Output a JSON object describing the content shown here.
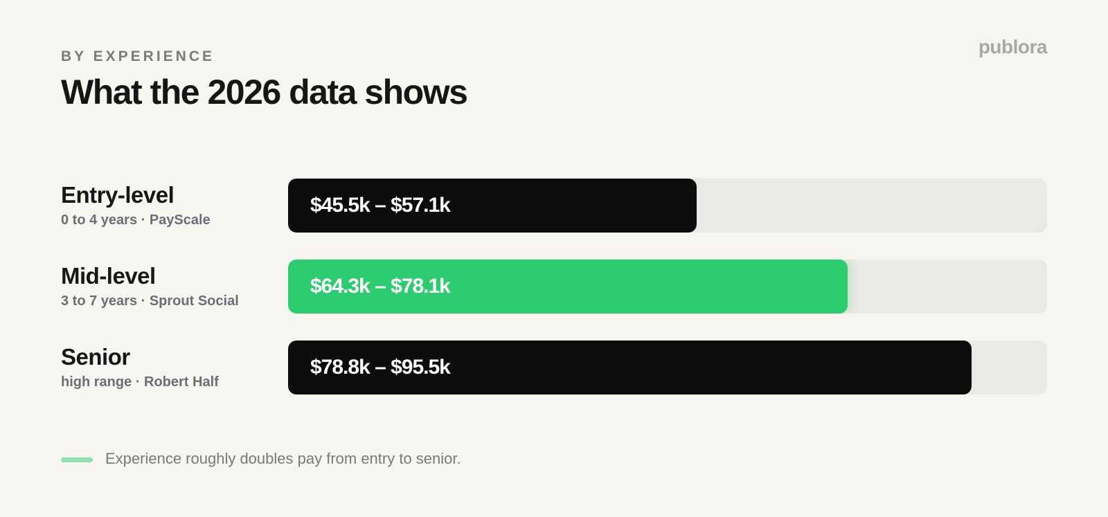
{
  "header": {
    "eyebrow": "BY EXPERIENCE",
    "title": "What the 2026 data shows",
    "brand": "publora"
  },
  "chart_data": {
    "type": "bar",
    "orientation": "horizontal",
    "title": "What the 2026 data shows",
    "categories": [
      "Entry-level",
      "Mid-level",
      "Senior"
    ],
    "subtitles": [
      "0 to 4 years · PayScale",
      "3 to 7 years · Sprout Social",
      "high range · Robert Half"
    ],
    "range_labels": [
      "$45.5k – $57.1k",
      "$64.3k – $78.1k",
      "$78.8k – $95.5k"
    ],
    "ranges_k": [
      [
        45.5,
        57.1
      ],
      [
        64.3,
        78.1
      ],
      [
        78.8,
        95.5
      ]
    ],
    "values": [
      57.1,
      78.1,
      95.5
    ],
    "xlim": [
      0,
      106
    ],
    "highlight_index": 1,
    "grid": false,
    "colors": {
      "bar": "#0d0d0d",
      "highlight": "#2ecc71",
      "track": "#eae9e3",
      "label_text": "#ffffff"
    }
  },
  "footnote": {
    "text": "Experience roughly doubles pay from entry to senior.",
    "marker_color": "#93dfb0"
  }
}
